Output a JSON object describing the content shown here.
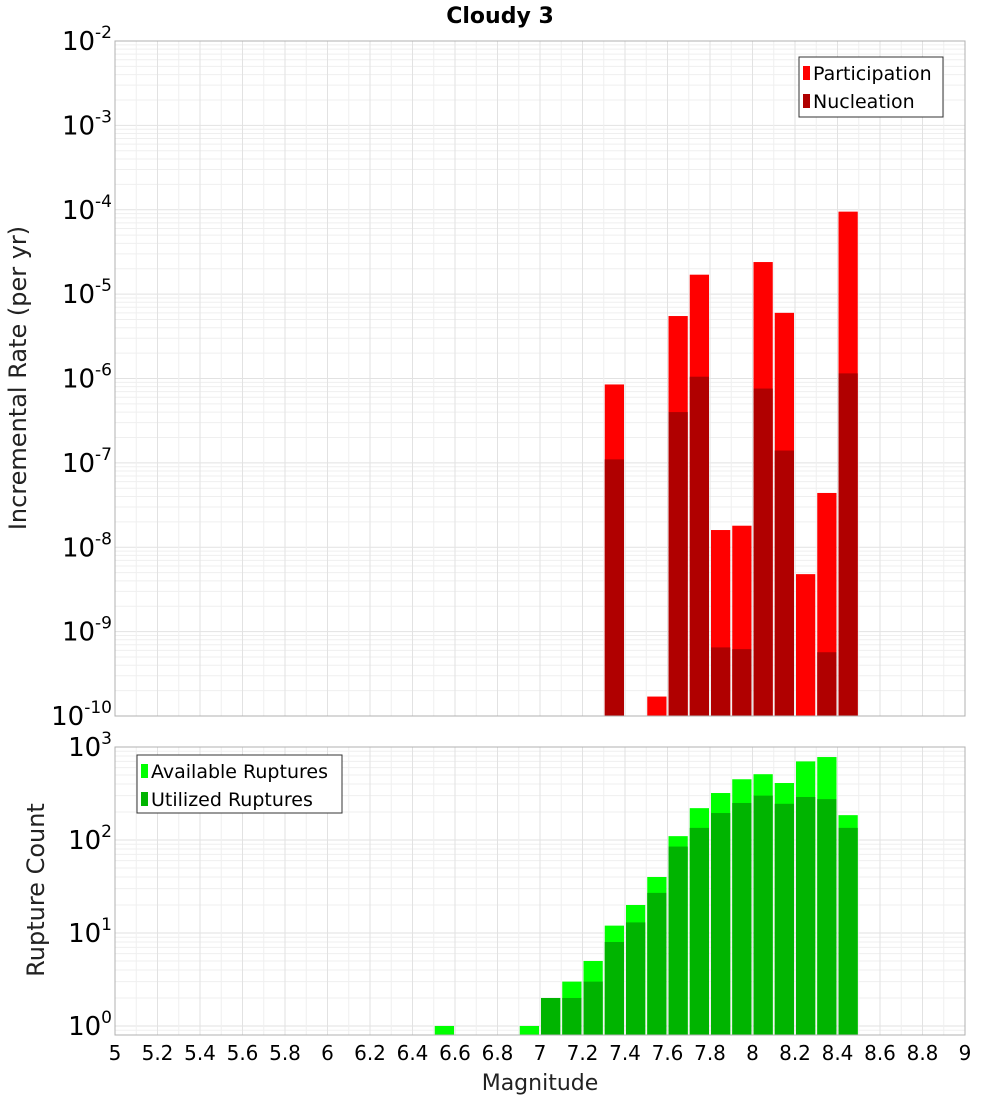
{
  "title": "Cloudy 3",
  "x_axis": {
    "label": "Magnitude",
    "ticks": [
      "5",
      "5.2",
      "5.4",
      "5.6",
      "5.8",
      "6",
      "6.2",
      "6.4",
      "6.6",
      "6.8",
      "7",
      "7.2",
      "7.4",
      "7.6",
      "7.8",
      "8",
      "8.2",
      "8.4",
      "8.6",
      "8.8",
      "9"
    ]
  },
  "colors": {
    "participation": "#ff0000",
    "nucleation": "#b00000",
    "available": "#00ff00",
    "utilized": "#00b400",
    "grid": "#e8e8e8",
    "frame": "#b0b0b0"
  },
  "chart_data": [
    {
      "type": "bar",
      "ylabel": "Incremental Rate (per yr)",
      "xlim": [
        5,
        9
      ],
      "ylim": [
        1e-10,
        0.01
      ],
      "yscale": "log",
      "bar_width": 0.1,
      "y_ticks": [
        {
          "base": "10",
          "exp": "-2"
        },
        {
          "base": "10",
          "exp": "-3"
        },
        {
          "base": "10",
          "exp": "-4"
        },
        {
          "base": "10",
          "exp": "-5"
        },
        {
          "base": "10",
          "exp": "-6"
        },
        {
          "base": "10",
          "exp": "-7"
        },
        {
          "base": "10",
          "exp": "-8"
        },
        {
          "base": "10",
          "exp": "-9"
        },
        {
          "base": "10",
          "exp": "-10"
        }
      ],
      "legend": {
        "position": "top-right",
        "entries": [
          "Participation",
          "Nucleation"
        ]
      },
      "x": [
        7.35,
        7.55,
        7.65,
        7.75,
        7.85,
        7.95,
        8.05,
        8.15,
        8.25,
        8.35,
        8.45
      ],
      "series": [
        {
          "name": "Participation",
          "values": [
            8.5e-07,
            1.7e-10,
            5.5e-06,
            1.7e-05,
            1.6e-08,
            1.8e-08,
            2.4e-05,
            6e-06,
            4.8e-09,
            4.4e-08,
            9.5e-05
          ]
        },
        {
          "name": "Nucleation",
          "values": [
            1.1e-07,
            null,
            4e-07,
            1.05e-06,
            6.5e-10,
            6.2e-10,
            7.6e-07,
            1.4e-07,
            null,
            5.7e-10,
            1.15e-06
          ]
        }
      ],
      "grid": true
    },
    {
      "type": "bar",
      "ylabel": "Rupture Count",
      "xlim": [
        5,
        9
      ],
      "ylim": [
        0.8,
        1000
      ],
      "yscale": "log",
      "bar_width": 0.1,
      "y_ticks": [
        {
          "base": "10",
          "exp": "3"
        },
        {
          "base": "10",
          "exp": "2"
        },
        {
          "base": "10",
          "exp": "1"
        },
        {
          "base": "10",
          "exp": "0"
        }
      ],
      "legend": {
        "position": "top-left",
        "entries": [
          "Available Ruptures",
          "Utilized Ruptures"
        ]
      },
      "x": [
        6.55,
        6.95,
        7.05,
        7.15,
        7.25,
        7.35,
        7.45,
        7.55,
        7.65,
        7.75,
        7.85,
        7.95,
        8.05,
        8.15,
        8.25,
        8.35,
        8.45
      ],
      "series": [
        {
          "name": "Available Ruptures",
          "values": [
            1,
            1,
            2,
            3,
            5,
            12,
            20,
            40,
            110,
            220,
            320,
            450,
            510,
            410,
            700,
            780,
            185
          ]
        },
        {
          "name": "Utilized Ruptures",
          "values": [
            null,
            null,
            2,
            2,
            3,
            8,
            13,
            27,
            85,
            135,
            195,
            250,
            300,
            245,
            290,
            275,
            135
          ]
        }
      ],
      "grid": true
    }
  ]
}
